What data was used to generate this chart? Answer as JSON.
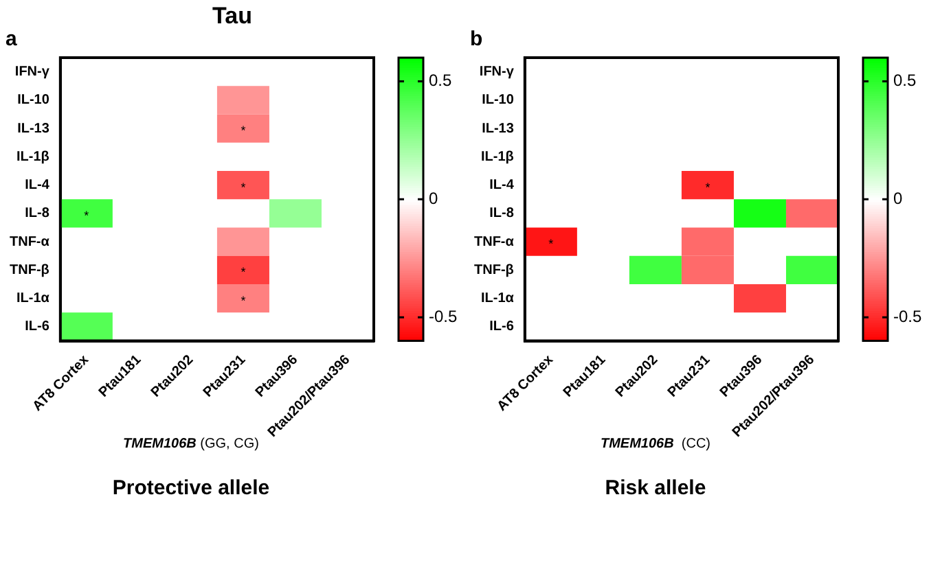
{
  "chart_data": [
    {
      "type": "heatmap",
      "title": "Tau",
      "subtitle": "a",
      "xlabel": "TMEM106B (GG, CG)",
      "annotations": [
        "Protective allele"
      ],
      "categories": [
        "AT8 Cortex",
        "Ptau181",
        "Ptau202",
        "Ptau231",
        "Ptau396",
        "Ptau202/Ptau396"
      ],
      "y_categories": [
        "IFN-γ",
        "IL-10",
        "IL-13",
        "IL-1β",
        "IL-4",
        "IL-8",
        "TNF-α",
        "TNF-β",
        "IL-1α",
        "IL-6"
      ],
      "cells": [
        [
          null,
          null,
          null,
          null,
          null,
          null
        ],
        [
          null,
          null,
          null,
          -0.25,
          null,
          null
        ],
        [
          null,
          null,
          null,
          -0.3,
          null,
          null
        ],
        [
          null,
          null,
          null,
          null,
          null,
          null
        ],
        [
          null,
          null,
          null,
          -0.4,
          null,
          null
        ],
        [
          0.45,
          null,
          null,
          null,
          0.25,
          null
        ],
        [
          null,
          null,
          null,
          -0.25,
          null,
          null
        ],
        [
          null,
          null,
          null,
          -0.45,
          null,
          null
        ],
        [
          null,
          null,
          null,
          -0.3,
          null,
          null
        ],
        [
          0.4,
          null,
          null,
          null,
          null,
          null
        ]
      ],
      "cell_labels": [
        [
          null,
          null,
          null,
          null,
          null,
          null
        ],
        [
          null,
          null,
          null,
          null,
          null,
          null
        ],
        [
          null,
          null,
          null,
          "*",
          null,
          null
        ],
        [
          null,
          null,
          null,
          null,
          null,
          null
        ],
        [
          null,
          null,
          null,
          "*",
          null,
          null
        ],
        [
          "*",
          null,
          null,
          null,
          null,
          null
        ],
        [
          null,
          null,
          null,
          null,
          null,
          null
        ],
        [
          null,
          null,
          null,
          "*",
          null,
          null
        ],
        [
          null,
          null,
          null,
          "*",
          null,
          null
        ],
        [
          null,
          null,
          null,
          null,
          null,
          null
        ]
      ],
      "clim": [
        -0.6,
        0.6
      ],
      "cticks": [
        -0.5,
        0,
        0.5
      ]
    },
    {
      "type": "heatmap",
      "subtitle": "b",
      "xlabel": "TMEM106B  (CC)",
      "annotations": [
        "Risk allele"
      ],
      "categories": [
        "AT8 Cortex",
        "Ptau181",
        "Ptau202",
        "Ptau231",
        "Ptau396",
        "Ptau202/Ptau396"
      ],
      "y_categories": [
        "IFN-γ",
        "IL-10",
        "IL-13",
        "IL-1β",
        "IL-4",
        "IL-8",
        "TNF-α",
        "TNF-β",
        "IL-1α",
        "IL-6"
      ],
      "cells": [
        [
          null,
          null,
          null,
          null,
          null,
          null
        ],
        [
          null,
          null,
          null,
          null,
          null,
          null
        ],
        [
          null,
          null,
          null,
          null,
          null,
          null
        ],
        [
          null,
          null,
          null,
          null,
          null,
          null
        ],
        [
          null,
          null,
          null,
          -0.5,
          null,
          null
        ],
        [
          null,
          null,
          null,
          null,
          0.55,
          -0.35
        ],
        [
          -0.55,
          null,
          null,
          -0.35,
          null,
          null
        ],
        [
          null,
          null,
          0.45,
          -0.35,
          null,
          0.45
        ],
        [
          null,
          null,
          null,
          null,
          -0.45,
          null
        ],
        [
          null,
          null,
          null,
          null,
          null,
          null
        ]
      ],
      "cell_labels": [
        [
          null,
          null,
          null,
          null,
          null,
          null
        ],
        [
          null,
          null,
          null,
          null,
          null,
          null
        ],
        [
          null,
          null,
          null,
          null,
          null,
          null
        ],
        [
          null,
          null,
          null,
          null,
          null,
          null
        ],
        [
          null,
          null,
          null,
          "*",
          null,
          null
        ],
        [
          null,
          null,
          null,
          null,
          null,
          null
        ],
        [
          "*",
          null,
          null,
          null,
          null,
          null
        ],
        [
          null,
          null,
          null,
          null,
          null,
          null
        ],
        [
          null,
          null,
          null,
          null,
          null,
          null
        ],
        [
          null,
          null,
          null,
          null,
          null,
          null
        ]
      ],
      "clim": [
        -0.6,
        0.6
      ],
      "cticks": [
        -0.5,
        0,
        0.5
      ]
    }
  ]
}
